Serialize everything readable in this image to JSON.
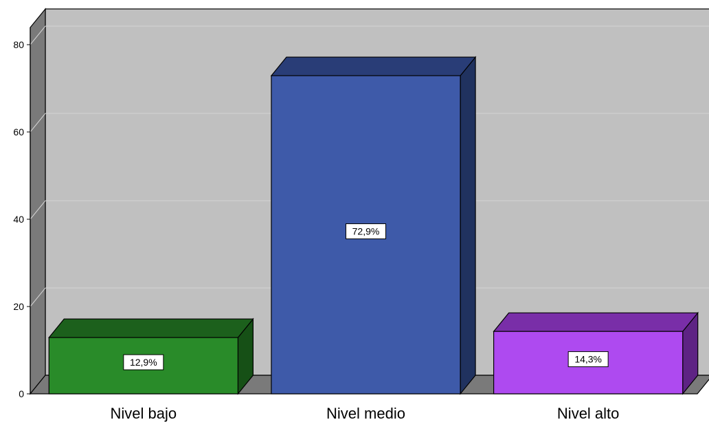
{
  "chart_data": {
    "type": "bar",
    "title": "",
    "xlabel": "",
    "ylabel": "",
    "ylim": [
      0,
      80
    ],
    "yticks": [
      0,
      20,
      40,
      60,
      80
    ],
    "categories": [
      "Nivel bajo",
      "Nivel medio",
      "Nivel alto"
    ],
    "values": [
      12.9,
      72.9,
      14.3
    ],
    "data_labels": [
      "12,9%",
      "72,9%",
      "14,3%"
    ],
    "colors": {
      "bars": [
        "#298b29",
        "#3e5aa9",
        "#ae4af0"
      ],
      "bar_tops": [
        "#1c601c",
        "#293d77",
        "#792ea8"
      ],
      "bar_sides": [
        "#165016",
        "#20325f",
        "#5e2384"
      ],
      "plot_background": "#c0c0c0",
      "left_wall": "#7a7a7a",
      "floor": "#7a7a7a",
      "gridline": "#d4d4d4",
      "label_box": "#ffffff"
    },
    "grid": true,
    "style": "3d-bar"
  }
}
